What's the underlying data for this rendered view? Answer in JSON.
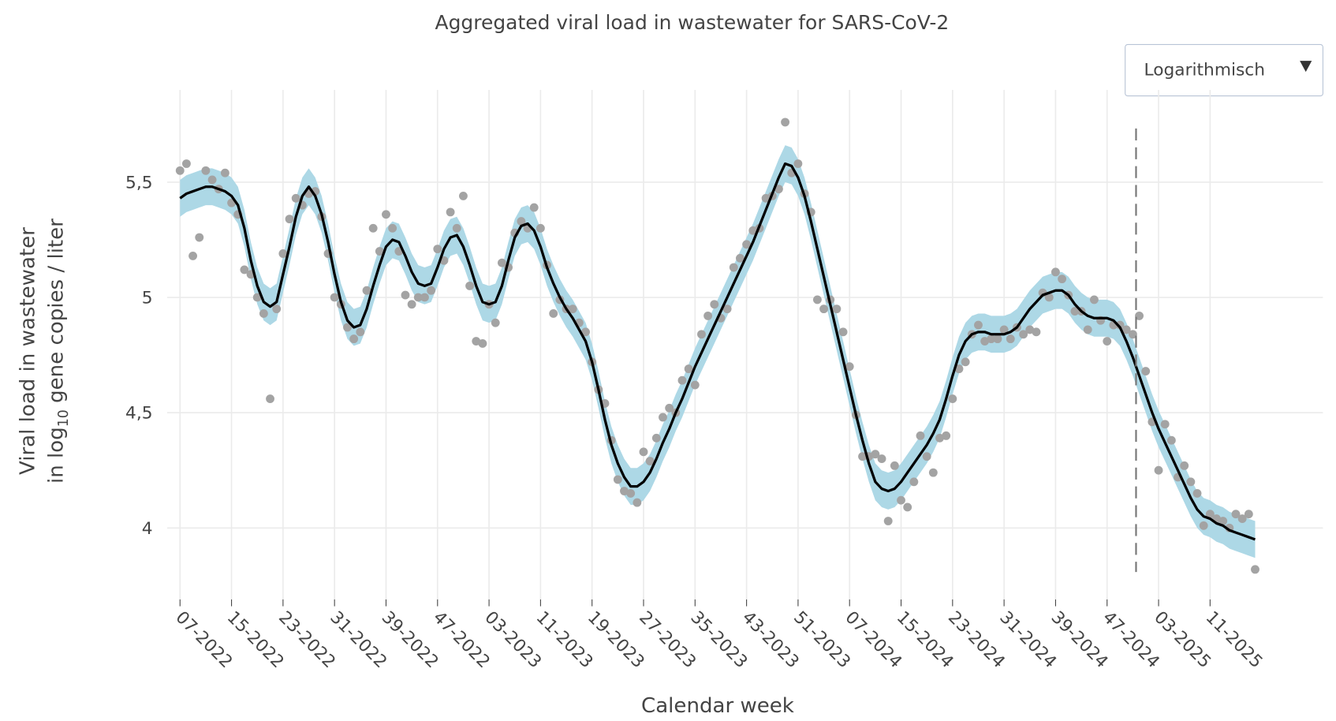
{
  "chart_data": {
    "type": "line",
    "title": "Aggregated viral load in wastewater for SARS-CoV-2",
    "xlabel": "Calendar week",
    "ylabel": {
      "line1": "Viral load in wastewater",
      "pre": "in log",
      "sub": "10",
      "post": " gene copies / liter"
    },
    "dropdown": {
      "label": "Logarithmisch"
    },
    "categories": [
      "07-2022",
      null,
      null,
      null,
      null,
      null,
      null,
      null,
      "15-2022",
      null,
      null,
      null,
      null,
      null,
      null,
      null,
      "23-2022",
      null,
      null,
      null,
      null,
      null,
      null,
      null,
      "31-2022",
      null,
      null,
      null,
      null,
      null,
      null,
      null,
      "39-2022",
      null,
      null,
      null,
      null,
      null,
      null,
      null,
      "47-2022",
      null,
      null,
      null,
      null,
      null,
      null,
      null,
      "03-2023",
      null,
      null,
      null,
      null,
      null,
      null,
      null,
      "11-2023",
      null,
      null,
      null,
      null,
      null,
      null,
      null,
      "19-2023",
      null,
      null,
      null,
      null,
      null,
      null,
      null,
      "27-2023",
      null,
      null,
      null,
      null,
      null,
      null,
      null,
      "35-2023",
      null,
      null,
      null,
      null,
      null,
      null,
      null,
      "43-2023",
      null,
      null,
      null,
      null,
      null,
      null,
      null,
      "51-2023",
      null,
      null,
      null,
      null,
      null,
      null,
      null,
      "07-2024",
      null,
      null,
      null,
      null,
      null,
      null,
      null,
      "15-2024",
      null,
      null,
      null,
      null,
      null,
      null,
      null,
      "23-2024",
      null,
      null,
      null,
      null,
      null,
      null,
      null,
      "31-2024",
      null,
      null,
      null,
      null,
      null,
      null,
      null,
      "39-2024",
      null,
      null,
      null,
      null,
      null,
      null,
      null,
      "47-2024",
      null,
      null,
      null,
      null,
      null,
      null,
      null,
      "03-2025",
      null,
      null,
      null,
      null,
      null,
      null,
      null,
      "11-2025",
      null,
      null,
      null,
      null,
      null,
      null,
      null
    ],
    "ylim": [
      3.69,
      5.9
    ],
    "yticks": [
      4,
      {
        "value": 4.5,
        "label": "4,5"
      },
      5,
      {
        "value": 5.5,
        "label": "5,5"
      }
    ],
    "grid": true,
    "band": {
      "color": "#add8e6",
      "halfwidth": 0.08
    },
    "vline_x": 148.5,
    "series": [
      {
        "type": "scatter",
        "color": "#a3a3a3",
        "values": [
          5.55,
          5.58,
          5.18,
          5.26,
          5.55,
          5.51,
          5.47,
          5.54,
          5.41,
          5.36,
          5.12,
          5.1,
          5.0,
          4.93,
          4.56,
          4.95,
          5.19,
          5.34,
          5.43,
          5.4,
          5.45,
          5.46,
          5.35,
          5.19,
          5.0,
          4.97,
          4.87,
          4.82,
          4.85,
          5.03,
          5.3,
          5.2,
          5.36,
          5.3,
          5.2,
          5.01,
          4.97,
          5.0,
          5.0,
          5.03,
          5.21,
          5.16,
          5.37,
          5.3,
          5.44,
          5.05,
          4.81,
          4.8,
          4.97,
          4.89,
          5.15,
          5.13,
          5.28,
          5.33,
          5.3,
          5.39,
          5.3,
          5.14,
          4.93,
          4.99,
          4.95,
          4.95,
          4.89,
          4.85,
          4.72,
          4.6,
          4.54,
          4.38,
          4.21,
          4.16,
          4.15,
          4.11,
          4.33,
          4.29,
          4.39,
          4.48,
          4.52,
          4.5,
          4.64,
          4.69,
          4.62,
          4.84,
          4.92,
          4.97,
          4.91,
          4.95,
          5.13,
          5.17,
          5.23,
          5.29,
          5.3,
          5.43,
          5.44,
          5.47,
          5.76,
          5.54,
          5.58,
          5.45,
          5.37,
          4.99,
          4.95,
          4.99,
          4.95,
          4.85,
          4.7,
          4.49,
          4.31,
          4.31,
          4.32,
          4.3,
          4.03,
          4.27,
          4.12,
          4.09,
          4.2,
          4.4,
          4.31,
          4.24,
          4.39,
          4.4,
          4.56,
          4.69,
          4.72,
          4.84,
          4.88,
          4.81,
          4.82,
          4.82,
          4.86,
          4.82,
          4.87,
          4.84,
          4.86,
          4.85,
          5.02,
          5.0,
          5.11,
          5.08,
          5.01,
          4.94,
          4.94,
          4.86,
          4.99,
          4.9,
          4.81,
          4.88,
          4.88,
          4.86,
          4.84,
          4.92,
          4.68,
          4.46,
          4.25,
          4.45,
          4.38,
          4.22,
          4.27,
          4.2,
          4.15,
          4.01,
          4.06,
          4.04,
          4.03,
          4.0,
          4.06,
          4.04,
          4.06,
          3.82
        ]
      },
      {
        "type": "line",
        "color": "#000000",
        "values": [
          5.43,
          5.45,
          5.46,
          5.47,
          5.48,
          5.48,
          5.47,
          5.46,
          5.44,
          5.4,
          5.3,
          5.16,
          5.05,
          4.98,
          4.96,
          4.98,
          5.1,
          5.22,
          5.35,
          5.44,
          5.48,
          5.44,
          5.36,
          5.24,
          5.1,
          4.98,
          4.9,
          4.87,
          4.88,
          4.95,
          5.05,
          5.14,
          5.22,
          5.25,
          5.24,
          5.18,
          5.11,
          5.06,
          5.05,
          5.06,
          5.13,
          5.21,
          5.26,
          5.27,
          5.22,
          5.14,
          5.05,
          4.98,
          4.97,
          4.98,
          5.05,
          5.16,
          5.26,
          5.31,
          5.32,
          5.29,
          5.22,
          5.13,
          5.06,
          5.0,
          4.95,
          4.91,
          4.86,
          4.81,
          4.72,
          4.6,
          4.47,
          4.36,
          4.28,
          4.22,
          4.18,
          4.18,
          4.2,
          4.24,
          4.3,
          4.37,
          4.43,
          4.5,
          4.56,
          4.63,
          4.7,
          4.76,
          4.82,
          4.88,
          4.94,
          5.0,
          5.06,
          5.12,
          5.18,
          5.24,
          5.31,
          5.38,
          5.45,
          5.52,
          5.58,
          5.57,
          5.52,
          5.44,
          5.33,
          5.21,
          5.09,
          4.97,
          4.85,
          4.73,
          4.61,
          4.49,
          4.38,
          4.28,
          4.2,
          4.17,
          4.16,
          4.17,
          4.2,
          4.24,
          4.28,
          4.32,
          4.36,
          4.41,
          4.47,
          4.56,
          4.66,
          4.75,
          4.81,
          4.84,
          4.85,
          4.85,
          4.84,
          4.84,
          4.84,
          4.85,
          4.87,
          4.91,
          4.95,
          4.98,
          5.01,
          5.02,
          5.03,
          5.03,
          5.01,
          4.97,
          4.94,
          4.92,
          4.91,
          4.91,
          4.91,
          4.9,
          4.87,
          4.81,
          4.74,
          4.66,
          4.58,
          4.5,
          4.43,
          4.37,
          4.31,
          4.25,
          4.19,
          4.13,
          4.08,
          4.05,
          4.04,
          4.02,
          4.01,
          3.99,
          3.98,
          3.97,
          3.96,
          3.95
        ]
      }
    ]
  }
}
